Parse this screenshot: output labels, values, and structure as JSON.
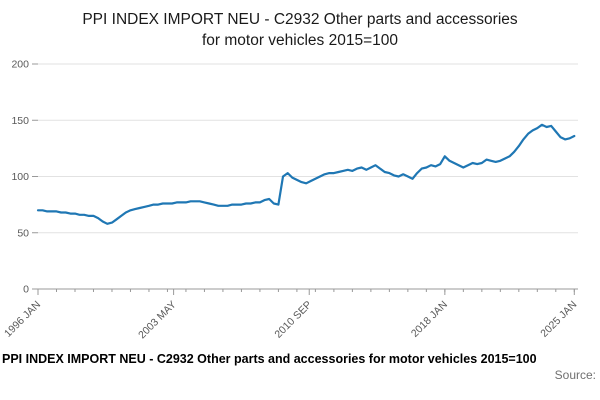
{
  "title": "PPI INDEX IMPORT NEU - C2932 Other parts and accessories for motor vehicles 2015=100",
  "footer": {
    "caption": "PPI INDEX IMPORT NEU - C2932 Other parts and accessories for motor vehicles 2015=100",
    "source": "Source:"
  },
  "chart_data": {
    "type": "line",
    "title": "PPI INDEX IMPORT NEU - C2932 Other parts and accessories for motor vehicles 2015=100",
    "xlabel": "",
    "ylabel": "",
    "ylim": [
      0,
      200
    ],
    "yticks": [
      0,
      50,
      100,
      150,
      200
    ],
    "xlim": [
      1996.0,
      2025.2
    ],
    "xtick_positions": [
      1996.0,
      2003.333,
      2010.667,
      2018.0,
      2025.0
    ],
    "xtick_labels": [
      "1996 JAN",
      "2003 MAY",
      "2010 SEP",
      "2018 JAN",
      "2025 JAN"
    ],
    "grid": true,
    "legend_position": "none",
    "line_color": "#1f77b4",
    "axis_color": "#999999",
    "grid_color": "#e2e2e2",
    "tick_label_color": "#595959",
    "series_name": "PPI INDEX IMPORT NEU - C2932 (2015=100)",
    "x": [
      1996.0,
      1996.25,
      1996.5,
      1996.75,
      1997.0,
      1997.25,
      1997.5,
      1997.75,
      1998.0,
      1998.25,
      1998.5,
      1998.75,
      1999.0,
      1999.25,
      1999.5,
      1999.75,
      2000.0,
      2000.25,
      2000.5,
      2000.75,
      2001.0,
      2001.25,
      2001.5,
      2001.75,
      2002.0,
      2002.25,
      2002.5,
      2002.75,
      2003.0,
      2003.25,
      2003.5,
      2003.75,
      2004.0,
      2004.25,
      2004.5,
      2004.75,
      2005.0,
      2005.25,
      2005.5,
      2005.75,
      2006.0,
      2006.25,
      2006.5,
      2006.75,
      2007.0,
      2007.25,
      2007.5,
      2007.75,
      2008.0,
      2008.25,
      2008.5,
      2008.75,
      2009.0,
      2009.25,
      2009.5,
      2009.75,
      2010.0,
      2010.25,
      2010.5,
      2010.75,
      2011.0,
      2011.25,
      2011.5,
      2011.75,
      2012.0,
      2012.25,
      2012.5,
      2012.75,
      2013.0,
      2013.25,
      2013.5,
      2013.75,
      2014.0,
      2014.25,
      2014.5,
      2014.75,
      2015.0,
      2015.25,
      2015.5,
      2015.75,
      2016.0,
      2016.25,
      2016.5,
      2016.75,
      2017.0,
      2017.25,
      2017.5,
      2017.75,
      2018.0,
      2018.25,
      2018.5,
      2018.75,
      2019.0,
      2019.25,
      2019.5,
      2019.75,
      2020.0,
      2020.25,
      2020.5,
      2020.75,
      2021.0,
      2021.25,
      2021.5,
      2021.75,
      2022.0,
      2022.25,
      2022.5,
      2022.75,
      2023.0,
      2023.25,
      2023.5,
      2023.75,
      2024.0,
      2024.25,
      2024.5,
      2024.75,
      2025.0
    ],
    "values": [
      70,
      70,
      69,
      69,
      69,
      68,
      68,
      67,
      67,
      66,
      66,
      65,
      65,
      63,
      60,
      58,
      59,
      62,
      65,
      68,
      70,
      71,
      72,
      73,
      74,
      75,
      75,
      76,
      76,
      76,
      77,
      77,
      77,
      78,
      78,
      78,
      77,
      76,
      75,
      74,
      74,
      74,
      75,
      75,
      75,
      76,
      76,
      77,
      77,
      79,
      80,
      76,
      75,
      100,
      103,
      99,
      97,
      95,
      94,
      96,
      98,
      100,
      102,
      103,
      103,
      104,
      105,
      106,
      105,
      107,
      108,
      106,
      108,
      110,
      107,
      104,
      103,
      101,
      100,
      102,
      100,
      98,
      103,
      107,
      108,
      110,
      109,
      111,
      118,
      114,
      112,
      110,
      108,
      110,
      112,
      111,
      112,
      115,
      114,
      113,
      114,
      116,
      118,
      122,
      127,
      133,
      138,
      141,
      143,
      146,
      144,
      145,
      140,
      135,
      133,
      134,
      136
    ]
  }
}
